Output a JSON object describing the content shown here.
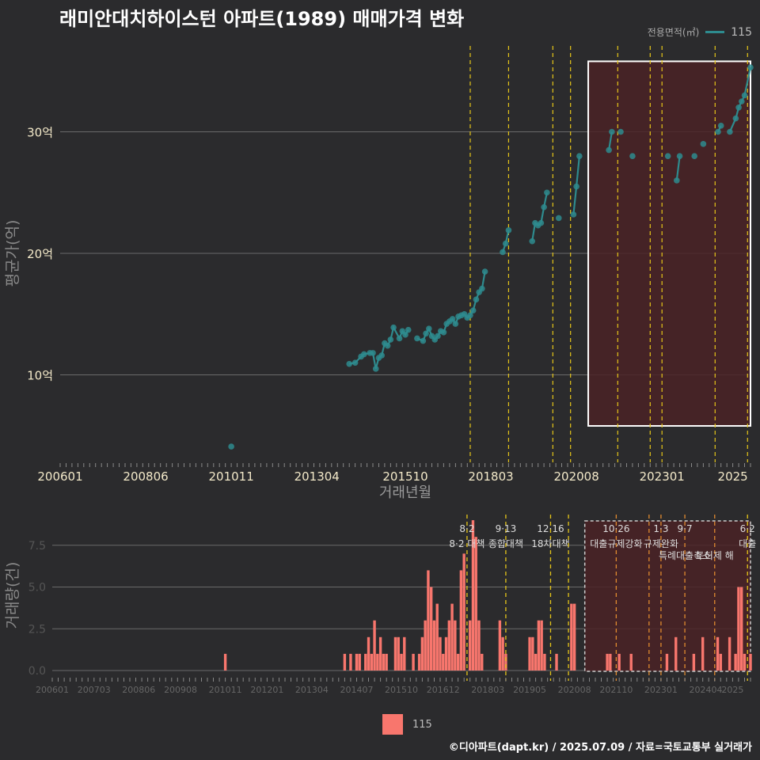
{
  "title": "래미안대치하이스턴 아파트(1989) 매매가격 변화",
  "legend": {
    "title": "전용면적(㎡)",
    "series_name": "115"
  },
  "footer": "©디아파트(dapt.kr) / 2025.07.09 / 자료=국토교통부 실거래가",
  "colors": {
    "line": "#2e8b8e",
    "bar": "#f8766d",
    "vline": "#e6c619",
    "highlight_fill": "#4a2226",
    "background": "#2b2b2d"
  },
  "chart_data": [
    {
      "type": "line",
      "xlabel": "거래년월",
      "ylabel": "평균가(억)",
      "x_ticks": [
        "200601",
        "200806",
        "201011",
        "201304",
        "201510",
        "201803",
        "202008",
        "202301",
        "2025"
      ],
      "y_ticks": [
        "10억",
        "20억",
        "30억"
      ],
      "ylim": [
        3.0,
        37.5
      ],
      "xlim": [
        "2006-01",
        "2025-07"
      ],
      "highlight_range": [
        "2020-12",
        "2025-07"
      ],
      "policy_lines": [
        "2017-08",
        "2018-09",
        "2019-12",
        "2020-06",
        "2021-10",
        "2022-09",
        "2023-01",
        "2024-07",
        "2025-06"
      ],
      "series": [
        {
          "name": "115",
          "points": [
            [
              "2010-11",
              4.1
            ],
            [
              "2014-03",
              10.9
            ],
            [
              "2014-05",
              11.0
            ],
            [
              "2014-07",
              11.5
            ],
            [
              "2014-08",
              11.7
            ],
            [
              "2014-10",
              11.8
            ],
            [
              "2014-11",
              11.8
            ],
            [
              "2014-12",
              10.5
            ],
            [
              "2015-01",
              11.4
            ],
            [
              "2015-02",
              11.6
            ],
            [
              "2015-03",
              12.6
            ],
            [
              "2015-04",
              12.4
            ],
            [
              "2015-05",
              12.9
            ],
            [
              "2015-06",
              13.9
            ],
            [
              "2015-08",
              13.0
            ],
            [
              "2015-09",
              13.6
            ],
            [
              "2015-10",
              13.3
            ],
            [
              "2015-11",
              13.7
            ],
            [
              "2016-02",
              13.0
            ],
            [
              "2016-04",
              12.8
            ],
            [
              "2016-05",
              13.4
            ],
            [
              "2016-06",
              13.8
            ],
            [
              "2016-07",
              13.2
            ],
            [
              "2016-08",
              12.9
            ],
            [
              "2016-09",
              13.2
            ],
            [
              "2016-10",
              13.6
            ],
            [
              "2016-11",
              13.5
            ],
            [
              "2016-12",
              14.2
            ],
            [
              "2017-01",
              14.4
            ],
            [
              "2017-02",
              14.6
            ],
            [
              "2017-03",
              14.2
            ],
            [
              "2017-04",
              14.8
            ],
            [
              "2017-05",
              14.9
            ],
            [
              "2017-06",
              15.0
            ],
            [
              "2017-07",
              14.7
            ],
            [
              "2017-08",
              14.9
            ],
            [
              "2017-09",
              15.3
            ],
            [
              "2017-10",
              16.2
            ],
            [
              "2017-11",
              16.8
            ],
            [
              "2017-12",
              17.1
            ],
            [
              "2018-01",
              18.5
            ],
            [
              "2018-07",
              20.1
            ],
            [
              "2018-08",
              20.8
            ],
            [
              "2018-09",
              21.9
            ],
            [
              "2019-05",
              21.0
            ],
            [
              "2019-06",
              22.5
            ],
            [
              "2019-07",
              22.3
            ],
            [
              "2019-08",
              22.5
            ],
            [
              "2019-09",
              23.8
            ],
            [
              "2019-10",
              25.0
            ],
            [
              "2020-02",
              22.9
            ],
            [
              "2020-07",
              23.2
            ],
            [
              "2020-08",
              25.5
            ],
            [
              "2020-09",
              28.0
            ],
            [
              "2021-07",
              28.5
            ],
            [
              "2021-08",
              30.0
            ],
            [
              "2021-11",
              30.0
            ],
            [
              "2022-03",
              28.0
            ],
            [
              "2023-03",
              28.0
            ],
            [
              "2023-06",
              26.0
            ],
            [
              "2023-07",
              28.0
            ],
            [
              "2023-12",
              28.0
            ],
            [
              "2024-03",
              29.0
            ],
            [
              "2024-08",
              30.0
            ],
            [
              "2024-09",
              30.5
            ],
            [
              "2024-12",
              30.0
            ],
            [
              "2025-02",
              31.1
            ],
            [
              "2025-03",
              32.0
            ],
            [
              "2025-04",
              32.5
            ],
            [
              "2025-05",
              33.0
            ],
            [
              "2025-07",
              35.3
            ]
          ]
        }
      ]
    },
    {
      "type": "bar",
      "xlabel": "",
      "ylabel": "거래량(건)",
      "x_ticks": [
        "200601",
        "200703",
        "200806",
        "200908",
        "201011",
        "201201",
        "201304",
        "201407",
        "201510",
        "201612",
        "201803",
        "201905",
        "202008",
        "202110",
        "202301",
        "202404",
        "2025"
      ],
      "y_ticks": [
        "0.0",
        "2.5",
        "5.0",
        "7.5"
      ],
      "ylim": [
        0,
        9.3
      ],
      "series": [
        {
          "name": "115",
          "points": [
            [
              "2010-11",
              1
            ],
            [
              "2014-03",
              1
            ],
            [
              "2014-05",
              1
            ],
            [
              "2014-07",
              1
            ],
            [
              "2014-08",
              1
            ],
            [
              "2014-10",
              1
            ],
            [
              "2014-11",
              2
            ],
            [
              "2014-12",
              1
            ],
            [
              "2015-01",
              3
            ],
            [
              "2015-02",
              1
            ],
            [
              "2015-03",
              2
            ],
            [
              "2015-04",
              1
            ],
            [
              "2015-05",
              1
            ],
            [
              "2015-08",
              2
            ],
            [
              "2015-09",
              2
            ],
            [
              "2015-10",
              1
            ],
            [
              "2015-11",
              2
            ],
            [
              "2016-02",
              1
            ],
            [
              "2016-04",
              1
            ],
            [
              "2016-05",
              2
            ],
            [
              "2016-06",
              3
            ],
            [
              "2016-07",
              6
            ],
            [
              "2016-08",
              5
            ],
            [
              "2016-09",
              3
            ],
            [
              "2016-10",
              4
            ],
            [
              "2016-11",
              2
            ],
            [
              "2016-12",
              1
            ],
            [
              "2017-01",
              2
            ],
            [
              "2017-02",
              3
            ],
            [
              "2017-03",
              4
            ],
            [
              "2017-04",
              3
            ],
            [
              "2017-05",
              1
            ],
            [
              "2017-06",
              6
            ],
            [
              "2017-07",
              7
            ],
            [
              "2017-09",
              3
            ],
            [
              "2017-10",
              9
            ],
            [
              "2017-11",
              8
            ],
            [
              "2017-12",
              3
            ],
            [
              "2018-01",
              1
            ],
            [
              "2018-07",
              3
            ],
            [
              "2018-08",
              2
            ],
            [
              "2018-09",
              1
            ],
            [
              "2019-05",
              2
            ],
            [
              "2019-06",
              2
            ],
            [
              "2019-07",
              1
            ],
            [
              "2019-08",
              3
            ],
            [
              "2019-09",
              3
            ],
            [
              "2019-10",
              1
            ],
            [
              "2020-02",
              1
            ],
            [
              "2020-07",
              4
            ],
            [
              "2020-08",
              4
            ],
            [
              "2021-07",
              1
            ],
            [
              "2021-08",
              1
            ],
            [
              "2021-11",
              1
            ],
            [
              "2022-03",
              1
            ],
            [
              "2023-03",
              1
            ],
            [
              "2023-06",
              2
            ],
            [
              "2023-12",
              1
            ],
            [
              "2024-03",
              2
            ],
            [
              "2024-08",
              2
            ],
            [
              "2024-09",
              1
            ],
            [
              "2024-12",
              2
            ],
            [
              "2025-02",
              1
            ],
            [
              "2025-03",
              5
            ],
            [
              "2025-04",
              5
            ],
            [
              "2025-05",
              1
            ],
            [
              "2025-07",
              1
            ]
          ]
        }
      ],
      "policy_annotations": [
        {
          "date": "2017-08",
          "date_label": "8·2",
          "text": "8·2 대책",
          "color": "#e6c619"
        },
        {
          "date": "2018-09",
          "date_label": "9·13",
          "text": "종합대책",
          "color": "#e6c619"
        },
        {
          "date": "2019-12",
          "date_label": "12·16",
          "text": "18차대책",
          "color": "#e6c619"
        },
        {
          "date": "2020-06",
          "date_label": "",
          "text": "",
          "color": "#e6c619"
        },
        {
          "date": "2021-10",
          "date_label": "10·26",
          "text": "대출규제강화",
          "color": "#e08a2f"
        },
        {
          "date": "2022-09",
          "date_label": "",
          "text": "",
          "color": "#e08a2f"
        },
        {
          "date": "2023-01",
          "date_label": "1·3",
          "text": "규제완화",
          "color": "#e08a2f"
        },
        {
          "date": "2023-09",
          "date_label": "9·7",
          "text": "특례대출축소",
          "color": "#e08a2f"
        },
        {
          "date": "2024-07",
          "date_label": "",
          "text": "토허제 해",
          "color": "#e08a2f"
        },
        {
          "date": "2025-06",
          "date_label": "6·2",
          "text": "대출",
          "color": "#e6c619"
        }
      ]
    }
  ]
}
